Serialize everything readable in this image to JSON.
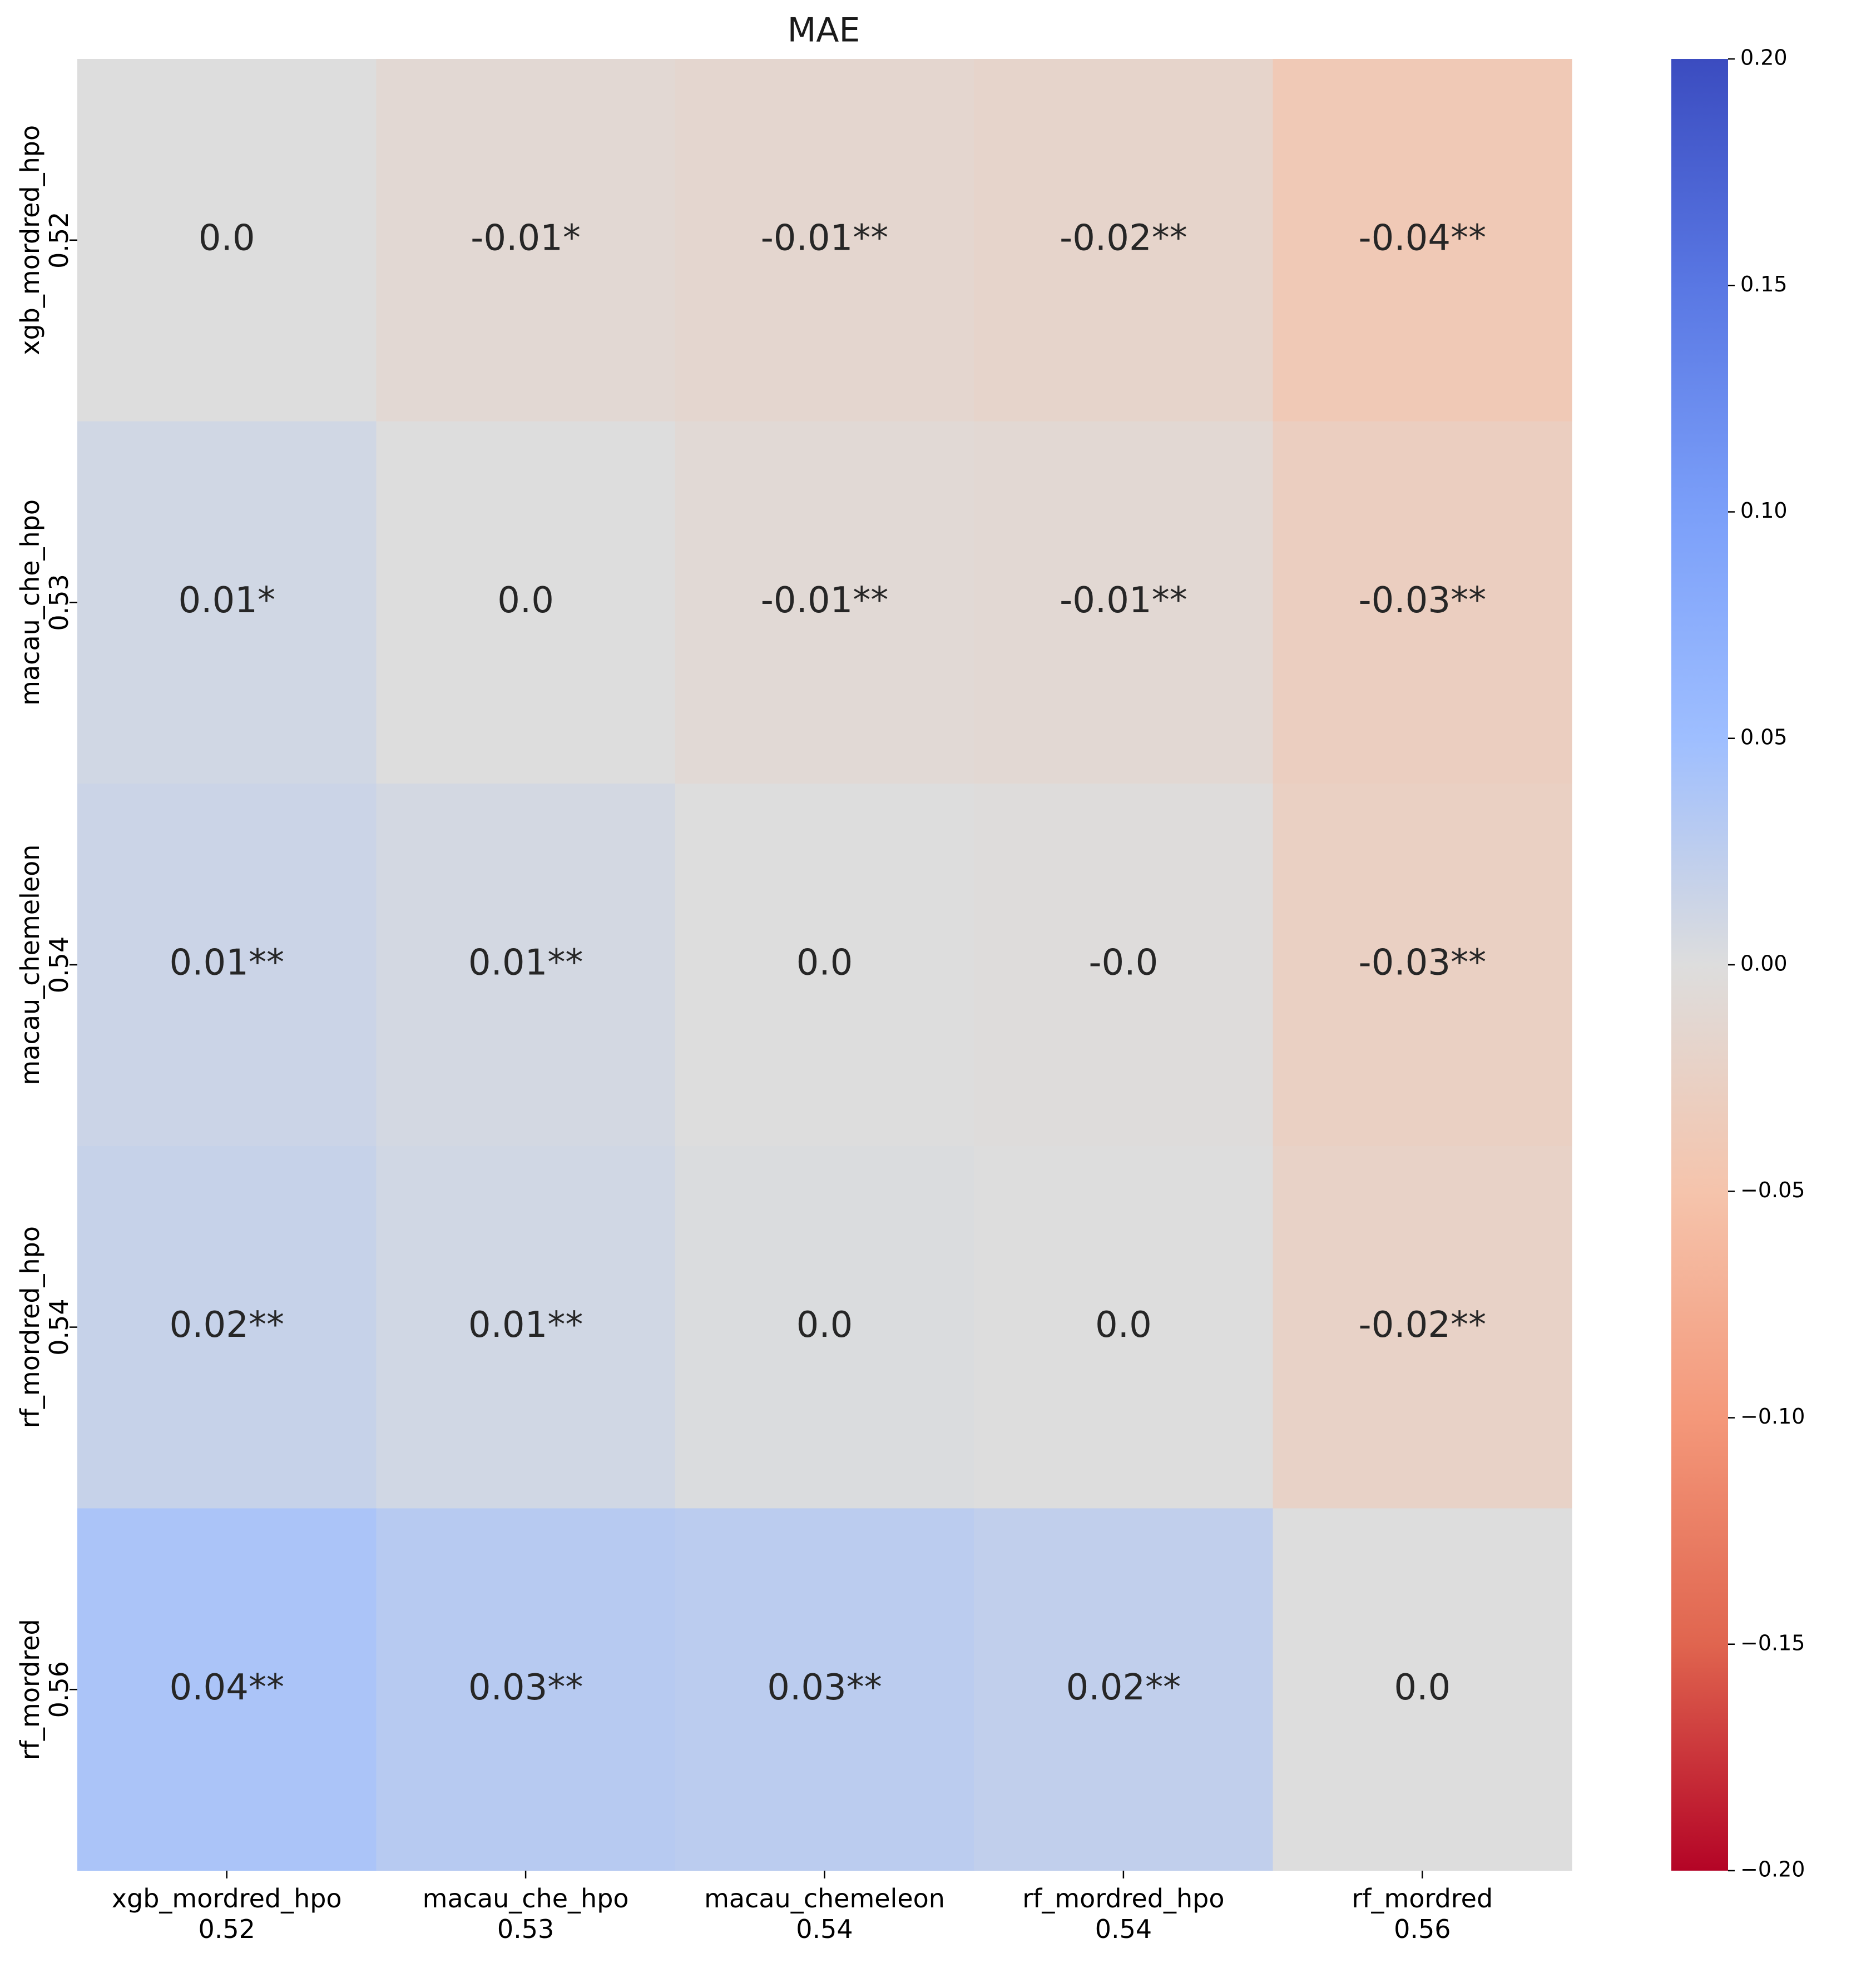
{
  "chart_data": {
    "type": "heatmap",
    "title": "MAE",
    "xlabel": "",
    "ylabel": "",
    "columns": [
      {
        "name": "xgb_mordred_hpo",
        "score": "0.52"
      },
      {
        "name": "macau_che_hpo",
        "score": "0.53"
      },
      {
        "name": "macau_chemeleon",
        "score": "0.54"
      },
      {
        "name": "rf_mordred_hpo",
        "score": "0.54"
      },
      {
        "name": "rf_mordred",
        "score": "0.56"
      }
    ],
    "rows": [
      {
        "name": "xgb_mordred_hpo",
        "score": "0.52"
      },
      {
        "name": "macau_che_hpo",
        "score": "0.53"
      },
      {
        "name": "macau_chemeleon",
        "score": "0.54"
      },
      {
        "name": "rf_mordred_hpo",
        "score": "0.54"
      },
      {
        "name": "rf_mordred",
        "score": "0.56"
      }
    ],
    "values": [
      [
        0.0,
        -0.01,
        -0.014,
        -0.018,
        -0.04
      ],
      [
        0.01,
        0.0,
        -0.008,
        -0.01,
        -0.03
      ],
      [
        0.014,
        0.008,
        0.0,
        -0.002,
        -0.027
      ],
      [
        0.018,
        0.01,
        0.002,
        0.0,
        -0.022
      ],
      [
        0.04,
        0.03,
        0.027,
        0.022,
        0.0
      ]
    ],
    "annotations": [
      [
        "0.0",
        "-0.01*",
        "-0.01**",
        "-0.02**",
        "-0.04**"
      ],
      [
        "0.01*",
        "0.0",
        "-0.01**",
        "-0.01**",
        "-0.03**"
      ],
      [
        "0.01**",
        "0.01**",
        "0.0",
        "-0.0",
        "-0.03**"
      ],
      [
        "0.02**",
        "0.01**",
        "0.0",
        "0.0",
        "-0.02**"
      ],
      [
        "0.04**",
        "0.03**",
        "0.03**",
        "0.02**",
        "0.0"
      ]
    ],
    "colorbar": {
      "vmin": -0.2,
      "vmax": 0.2,
      "ticks": [
        0.2,
        0.15,
        0.1,
        0.05,
        0.0,
        -0.05,
        -0.1,
        -0.15,
        -0.2
      ],
      "tick_labels": [
        "0.20",
        "0.15",
        "0.10",
        "0.05",
        "0.00",
        "−0.05",
        "−0.10",
        "−0.15",
        "−0.20"
      ],
      "colormap": "coolwarm_r",
      "color_high": "#3b4cc0",
      "color_mid": "#dddddd",
      "color_low": "#b40426"
    },
    "grid": false
  }
}
